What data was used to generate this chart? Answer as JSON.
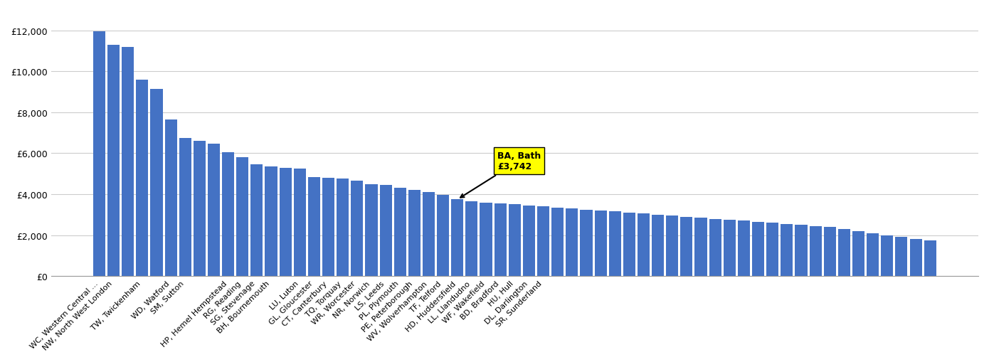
{
  "bar_values": [
    11950,
    11300,
    11200,
    9600,
    9150,
    7650,
    6750,
    6600,
    6450,
    6050,
    5800,
    5450,
    5350,
    5300,
    5250,
    4850,
    4800,
    4750,
    4650,
    4500,
    4450,
    4300,
    4200,
    4100,
    3950,
    3742,
    3650,
    3600,
    3550,
    3500,
    3450,
    3400,
    3350,
    3300,
    3250,
    3200,
    3150,
    3100,
    3050,
    3000,
    2950,
    2900,
    2850,
    2800,
    2750,
    2700,
    2650,
    2600,
    2550,
    2500,
    2450,
    2400,
    2300,
    2200,
    2100,
    2000,
    1900,
    1800,
    1750
  ],
  "bar_xlabels": [
    "WC, Western Central ...",
    "NW, North West London",
    "",
    "TW, Twickenham",
    "",
    "WD, Watford",
    "SM, Sutton",
    "",
    "",
    "HP, Hemel Hempstead",
    "RG, Reading",
    "SG, Stevenage",
    "BH, Bournemouth",
    "",
    "LU, Luton",
    "GL, Gloucester",
    "CT, Canterbury",
    "TQ, Torquay",
    "WR, Worcester",
    "NR, Norwich",
    "LS, Leeds",
    "PL, Plymouth",
    "PE, Peterborough",
    "WV, Wolverhampton",
    "TF, Telford",
    "HD, Huddersfield",
    "LL, Llandudno",
    "WF, Wakefield",
    "BD, Bradford",
    "HU, Hull",
    "DL, Darlington",
    "SR, Sunderland",
    "",
    "",
    "",
    "",
    "",
    "",
    "",
    "",
    "",
    "",
    "",
    "",
    "",
    "",
    "",
    "",
    "",
    "",
    "",
    "",
    "",
    "",
    "",
    "",
    "",
    "",
    ""
  ],
  "ba_idx": 25,
  "ba_val": 3742,
  "bar_color": "#4472C4",
  "annotation_text": "BA, Bath\n£3,742",
  "annotation_bg_color": "#FFFF00",
  "annotation_border_color": "#000000",
  "ylim": [
    0,
    13000
  ],
  "yticks": [
    0,
    2000,
    4000,
    6000,
    8000,
    10000,
    12000
  ],
  "ytick_labels": [
    "£0",
    "£2,000",
    "£4,000",
    "£6,000",
    "£8,000",
    "£10,000",
    "£12,000"
  ],
  "grid_color": "#CCCCCC",
  "background_color": "#FFFFFF"
}
